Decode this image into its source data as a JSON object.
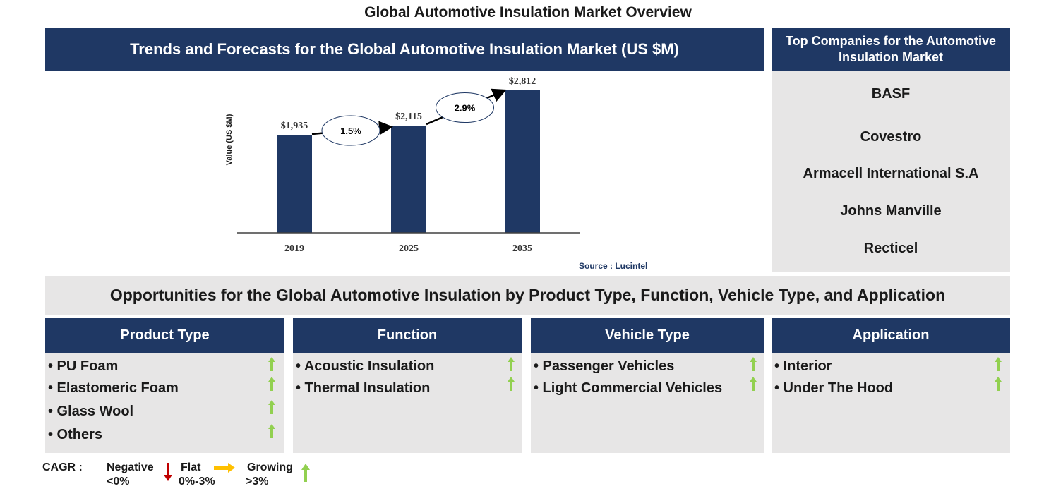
{
  "title": "Global Automotive Insulation Market Overview",
  "trends_header": "Trends and Forecasts for the Global Automotive Insulation Market (US $M)",
  "companies_header": "Top Companies for the Automotive Insulation Market",
  "companies": [
    "BASF",
    "Covestro",
    "Armacell International S.A",
    "Johns Manville",
    "Recticel"
  ],
  "chart_data": {
    "type": "bar",
    "categories": [
      "2019",
      "2025",
      "2035"
    ],
    "values": [
      1935,
      2115,
      2812
    ],
    "value_labels": [
      "$1,935",
      "$2,115",
      "$2,812"
    ],
    "ylabel": "Value (US $M)",
    "cagr_labels": [
      "1.5%",
      "2.9%"
    ],
    "bar_color": "#1f3864",
    "grid": false
  },
  "source": "Source : Lucintel",
  "opportunities_header": "Opportunities for the Global Automotive Insulation by Product Type, Function, Vehicle Type, and Application",
  "segments": [
    {
      "title": "Product Type",
      "items": [
        "• PU Foam",
        "• Elastomeric Foam",
        "• Glass Wool",
        "• Others"
      ]
    },
    {
      "title": "Function",
      "items": [
        "• Acoustic Insulation",
        "• Thermal Insulation"
      ]
    },
    {
      "title": "Vehicle Type",
      "items": [
        "• Passenger Vehicles",
        "• Light Commercial Vehicles"
      ]
    },
    {
      "title": "Application",
      "items": [
        "• Interior",
        "• Under The Hood"
      ]
    }
  ],
  "legend": {
    "cagr": "CAGR :",
    "negative": "Negative",
    "negative_range": "<0%",
    "flat": "Flat",
    "flat_range": "0%-3%",
    "growing": "Growing",
    "growing_range": ">3%"
  },
  "colors": {
    "navy": "#1f3864",
    "panel": "#e7e6e6",
    "up": "#92d050",
    "down": "#c00000",
    "flat": "#ffc000"
  },
  "trend_icon": "up-arrow-icon"
}
